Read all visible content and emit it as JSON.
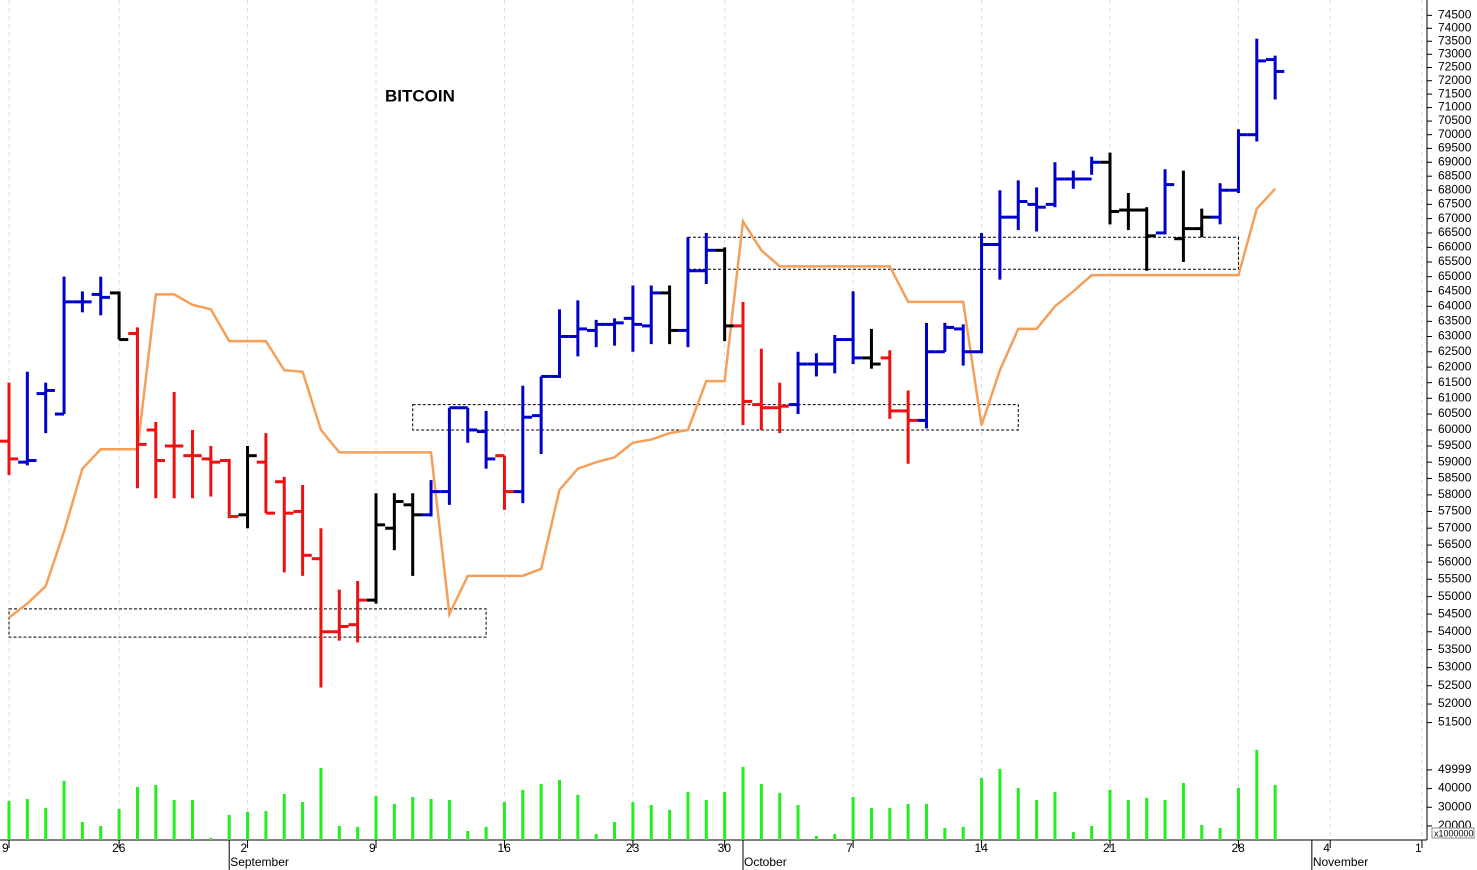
{
  "chart_data": [
    {
      "type": "ohlc",
      "title": "BITCOIN",
      "log": true,
      "ylim": [
        50900,
        75100
      ],
      "yticks": [
        51500,
        52000,
        52500,
        53000,
        53500,
        54000,
        54500,
        55000,
        55500,
        56000,
        56500,
        57000,
        57500,
        58000,
        58500,
        59000,
        59500,
        60000,
        60500,
        61000,
        61500,
        62000,
        62500,
        63000,
        63500,
        64000,
        64500,
        65000,
        65500,
        66000,
        66500,
        67000,
        67500,
        68000,
        68500,
        69000,
        69500,
        70000,
        70500,
        71000,
        71500,
        72000,
        72500,
        73000,
        73500,
        74000,
        74500
      ],
      "categories": [
        "9",
        null,
        null,
        null,
        null,
        null,
        "26",
        null,
        null,
        null,
        null,
        null,
        null,
        "2",
        null,
        null,
        null,
        null,
        null,
        null,
        "9",
        null,
        null,
        null,
        null,
        null,
        null,
        "16",
        null,
        null,
        null,
        null,
        null,
        null,
        "23",
        null,
        null,
        null,
        null,
        "30",
        null,
        null,
        null,
        null,
        null,
        null,
        "7",
        null,
        null,
        null,
        null,
        null,
        null,
        "14",
        null,
        null,
        null,
        null,
        null,
        null,
        "21",
        null,
        null,
        null,
        null,
        null,
        null,
        "28",
        null,
        null,
        null,
        null,
        "4",
        null,
        null,
        null,
        null,
        "1"
      ],
      "month_labels": [
        null,
        null,
        null,
        null,
        null,
        null,
        null,
        null,
        null,
        null,
        null,
        null,
        "September",
        null,
        null,
        null,
        null,
        null,
        null,
        null,
        null,
        null,
        null,
        null,
        null,
        null,
        null,
        null,
        null,
        null,
        null,
        null,
        null,
        null,
        null,
        null,
        null,
        null,
        null,
        null,
        "October",
        null,
        null,
        null,
        null,
        null,
        null,
        null,
        null,
        null,
        null,
        null,
        null,
        null,
        null,
        null,
        null,
        null,
        null,
        null,
        null,
        null,
        null,
        null,
        null,
        null,
        null,
        null,
        null,
        null,
        null,
        "November",
        null,
        null,
        null,
        null,
        null,
        null
      ],
      "open": [
        59650,
        59000,
        61150,
        60500,
        64150,
        64400,
        64450,
        63100,
        60000,
        59500,
        59200,
        59100,
        59050,
        57400,
        59000,
        58400,
        57500,
        56100,
        54000,
        54200,
        54900,
        57000,
        57700,
        57400,
        58100,
        60700,
        59950,
        59200,
        58100,
        60450,
        61700,
        63000,
        63200,
        63400,
        63600,
        63350,
        64450,
        63200,
        65200,
        65900,
        63350,
        60800,
        60700,
        60800,
        62100,
        62100,
        62900,
        62300,
        62300,
        60600,
        60300,
        62500,
        63250,
        62500,
        66100,
        67050,
        67500,
        67500,
        68400,
        68400,
        69000,
        67300,
        67300,
        66500,
        66300,
        66650,
        67050,
        68000,
        70000,
        72800,
        null,
        null,
        null,
        null,
        null,
        null,
        null,
        null
      ],
      "high": [
        61500,
        61850,
        61500,
        65000,
        64500,
        65000,
        64500,
        63300,
        60250,
        61200,
        60000,
        59500,
        59100,
        59500,
        59900,
        58550,
        58300,
        57000,
        55200,
        55450,
        58050,
        58050,
        58050,
        58450,
        60700,
        60700,
        60600,
        59200,
        61400,
        61700,
        63900,
        64200,
        63550,
        63600,
        64700,
        64700,
        64700,
        66350,
        66500,
        66000,
        64150,
        62600,
        61500,
        62500,
        62450,
        63050,
        64500,
        63250,
        62550,
        61250,
        63450,
        63450,
        63400,
        66500,
        68000,
        68350,
        68100,
        69000,
        68700,
        69200,
        69350,
        67900,
        67400,
        68750,
        68700,
        67350,
        68250,
        70200,
        73600,
        72950,
        null,
        null,
        null,
        null,
        null,
        null,
        null,
        null
      ],
      "low": [
        58600,
        58900,
        59900,
        60500,
        63800,
        63700,
        62900,
        58200,
        57900,
        57900,
        57900,
        57950,
        57300,
        57000,
        57450,
        55700,
        55600,
        52450,
        53750,
        53700,
        54800,
        56350,
        55600,
        57350,
        57700,
        59600,
        58800,
        57550,
        57750,
        59250,
        61650,
        62350,
        62650,
        62700,
        62500,
        62750,
        62750,
        62650,
        64750,
        62850,
        60150,
        60000,
        59900,
        60500,
        61700,
        61800,
        62100,
        61950,
        60350,
        58950,
        60050,
        62500,
        62050,
        62450,
        64900,
        66600,
        66550,
        67400,
        68050,
        68550,
        66800,
        66600,
        65200,
        66450,
        65500,
        66350,
        66800,
        67900,
        69750,
        71300,
        null,
        null,
        null,
        null,
        null,
        null,
        null,
        null
      ],
      "close": [
        59100,
        59050,
        61250,
        64150,
        64150,
        64300,
        62900,
        59550,
        59050,
        59500,
        59200,
        59000,
        57350,
        59200,
        57450,
        57450,
        56200,
        54000,
        54150,
        54900,
        57100,
        57800,
        57400,
        58100,
        60700,
        60000,
        59100,
        58100,
        60400,
        61700,
        63000,
        63250,
        63400,
        63450,
        63400,
        64450,
        63200,
        65200,
        65900,
        63350,
        60900,
        60700,
        60750,
        62100,
        62100,
        62900,
        62300,
        62100,
        60600,
        60300,
        62500,
        63300,
        62500,
        66100,
        67050,
        67600,
        67400,
        68400,
        68400,
        69000,
        67250,
        67300,
        66400,
        68200,
        66650,
        67050,
        68000,
        70000,
        72750,
        72350,
        null,
        null,
        null,
        null,
        null,
        null,
        null,
        null
      ],
      "bar_colors": [
        "#ee1111",
        "#0000cc",
        "#0000cc",
        "#0000cc",
        "#0000cc",
        "#0000cc",
        "#000000",
        "#ee1111",
        "#ee1111",
        "#ee1111",
        "#ee1111",
        "#ee1111",
        "#ee1111",
        "#000000",
        "#ee1111",
        "#ee1111",
        "#ee1111",
        "#ee1111",
        "#ee1111",
        "#ee1111",
        "#000000",
        "#000000",
        "#000000",
        "#0000cc",
        "#0000cc",
        "#0000cc",
        "#0000cc",
        "#ee1111",
        "#0000cc",
        "#0000cc",
        "#0000cc",
        "#0000cc",
        "#0000cc",
        "#0000cc",
        "#0000cc",
        "#0000cc",
        "#000000",
        "#0000cc",
        "#0000cc",
        "#000000",
        "#ee1111",
        "#ee1111",
        "#ee1111",
        "#0000cc",
        "#0000cc",
        "#0000cc",
        "#0000cc",
        "#000000",
        "#ee1111",
        "#ee1111",
        "#0000cc",
        "#0000cc",
        "#0000cc",
        "#0000cc",
        "#0000cc",
        "#0000cc",
        "#0000cc",
        "#0000cc",
        "#0000cc",
        "#0000cc",
        "#000000",
        "#000000",
        "#000000",
        "#0000cc",
        "#000000",
        "#000000",
        "#0000cc",
        "#0000cc",
        "#0000cc",
        "#0000cc",
        null,
        null,
        null,
        null,
        null,
        null,
        null,
        null
      ],
      "line": {
        "color": "#f5a05a",
        "values": [
          54400,
          54800,
          55300,
          56900,
          58800,
          59400,
          59400,
          59400,
          64400,
          64400,
          64050,
          63900,
          62850,
          62850,
          62850,
          61900,
          61850,
          60000,
          59300,
          59300,
          59300,
          59300,
          59300,
          59300,
          54500,
          55600,
          55600,
          55600,
          55600,
          55800,
          58150,
          58800,
          59000,
          59150,
          59600,
          59700,
          59900,
          60000,
          61550,
          61550,
          66900,
          65900,
          65350,
          65350,
          65350,
          65350,
          65350,
          65350,
          65350,
          64150,
          64150,
          64150,
          64150,
          60150,
          61900,
          63250,
          63250,
          64000,
          64500,
          65050,
          65050,
          65050,
          65050,
          65050,
          65050,
          65050,
          65050,
          65050,
          67350,
          68050,
          null,
          null,
          null,
          null,
          null,
          null,
          null,
          null
        ]
      },
      "zones": [
        {
          "from": 0,
          "to": 26,
          "low": 53850,
          "high": 54650
        },
        {
          "from": 22,
          "to": 55,
          "low": 60000,
          "high": 60800
        },
        {
          "from": 37,
          "to": 67,
          "low": 65250,
          "high": 66350
        }
      ]
    },
    {
      "type": "bar",
      "color": "#22ee22",
      "ylim": [
        12500,
        63300
      ],
      "yticks": [
        20000,
        30000,
        40000,
        49999
      ],
      "axis_note": "x1000000",
      "values": [
        33400,
        34400,
        29600,
        44100,
        22100,
        20000,
        29100,
        40900,
        41900,
        33900,
        33900,
        13600,
        25900,
        27500,
        28000,
        37100,
        32800,
        51000,
        20000,
        19500,
        36000,
        31800,
        35500,
        34400,
        33900,
        17300,
        19500,
        32800,
        39300,
        42500,
        44600,
        36600,
        15700,
        22100,
        32800,
        31200,
        28600,
        38200,
        33900,
        38200,
        51600,
        42500,
        37700,
        31200,
        14700,
        15700,
        35500,
        29600,
        29600,
        31800,
        31800,
        18900,
        19500,
        45700,
        50500,
        40300,
        33900,
        38200,
        16800,
        20000,
        39300,
        33900,
        35000,
        33900,
        43000,
        20500,
        18900,
        40300,
        60700,
        41900,
        null,
        null,
        null,
        null,
        null,
        null,
        null,
        null
      ]
    }
  ]
}
